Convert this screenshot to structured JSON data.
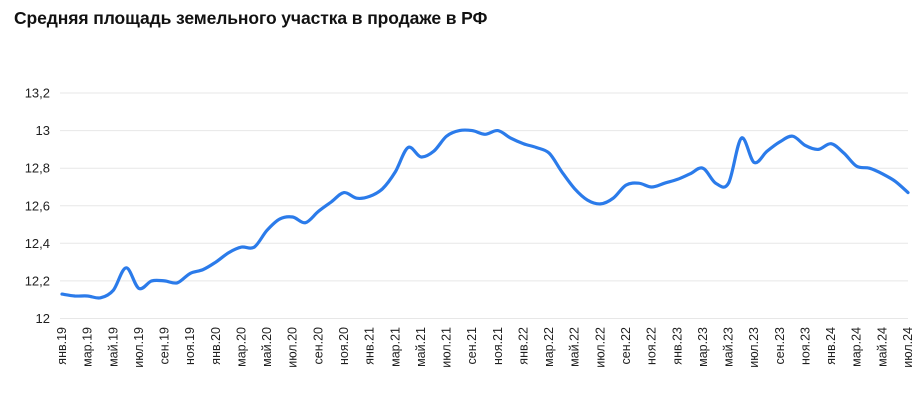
{
  "title": "Средняя площадь земельного участка в продаже в РФ",
  "chart_data": {
    "type": "line",
    "title": "Средняя площадь земельного участка в продаже в РФ",
    "x": [
      "янв.19",
      "фев.19",
      "мар.19",
      "апр.19",
      "май.19",
      "июн.19",
      "июл.19",
      "авг.19",
      "сен.19",
      "окт.19",
      "ноя.19",
      "дек.19",
      "янв.20",
      "фев.20",
      "мар.20",
      "апр.20",
      "май.20",
      "июн.20",
      "июл.20",
      "авг.20",
      "сен.20",
      "окт.20",
      "ноя.20",
      "дек.20",
      "янв.21",
      "фев.21",
      "мар.21",
      "апр.21",
      "май.21",
      "июн.21",
      "июл.21",
      "авг.21",
      "сен.21",
      "окт.21",
      "ноя.21",
      "дек.21",
      "янв.22",
      "фев.22",
      "мар.22",
      "апр.22",
      "май.22",
      "июн.22",
      "июл.22",
      "авг.22",
      "сен.22",
      "окт.22",
      "ноя.22",
      "дек.22",
      "янв.23",
      "фев.23",
      "мар.23",
      "апр.23",
      "май.23",
      "июн.23",
      "июл.23",
      "авг.23",
      "сен.23",
      "окт.23",
      "ноя.23",
      "дек.23",
      "янв.24",
      "фев.24",
      "мар.24",
      "апр.24",
      "май.24",
      "июн.24",
      "июл.24"
    ],
    "values": [
      12.13,
      12.12,
      12.12,
      12.11,
      12.15,
      12.27,
      12.16,
      12.2,
      12.2,
      12.19,
      12.24,
      12.26,
      12.3,
      12.35,
      12.38,
      12.38,
      12.47,
      12.53,
      12.54,
      12.51,
      12.57,
      12.62,
      12.67,
      12.64,
      12.65,
      12.69,
      12.78,
      12.91,
      12.86,
      12.89,
      12.97,
      13.0,
      13.0,
      12.98,
      13.0,
      12.96,
      12.93,
      12.91,
      12.88,
      12.78,
      12.69,
      12.63,
      12.61,
      12.64,
      12.71,
      12.72,
      12.7,
      12.72,
      12.74,
      12.77,
      12.8,
      12.72,
      12.72,
      12.96,
      12.83,
      12.89,
      12.94,
      12.97,
      12.92,
      12.9,
      12.93,
      12.88,
      12.81,
      12.8,
      12.77,
      12.73,
      12.67
    ],
    "x_tick_labels": [
      "янв.19",
      "мар.19",
      "май.19",
      "июл.19",
      "сен.19",
      "ноя.19",
      "янв.20",
      "мар.20",
      "май.20",
      "июл.20",
      "сен.20",
      "ноя.20",
      "янв.21",
      "мар.21",
      "май.21",
      "июл.21",
      "сен.21",
      "ноя.21",
      "янв.22",
      "мар.22",
      "май.22",
      "июл.22",
      "сен.22",
      "ноя.22",
      "янв.23",
      "мар.23",
      "май.23",
      "июл.23",
      "сен.23",
      "ноя.23",
      "янв.24",
      "мар.24",
      "май.24",
      "июл.24"
    ],
    "points_per_x_tick": 2,
    "y_ticks": [
      13.2,
      13,
      12.8,
      12.6,
      12.4,
      12.2,
      12
    ],
    "y_tick_labels": [
      "13,2",
      "13",
      "12,8",
      "12,6",
      "12,4",
      "12,2",
      "12"
    ],
    "ylim": [
      12,
      13.2
    ],
    "grid": true,
    "legend": "none",
    "line_color": "#2b7bea",
    "grid_color": "#e7e7e7",
    "label_color": "#1f1f1f",
    "title_color": "#111111"
  }
}
